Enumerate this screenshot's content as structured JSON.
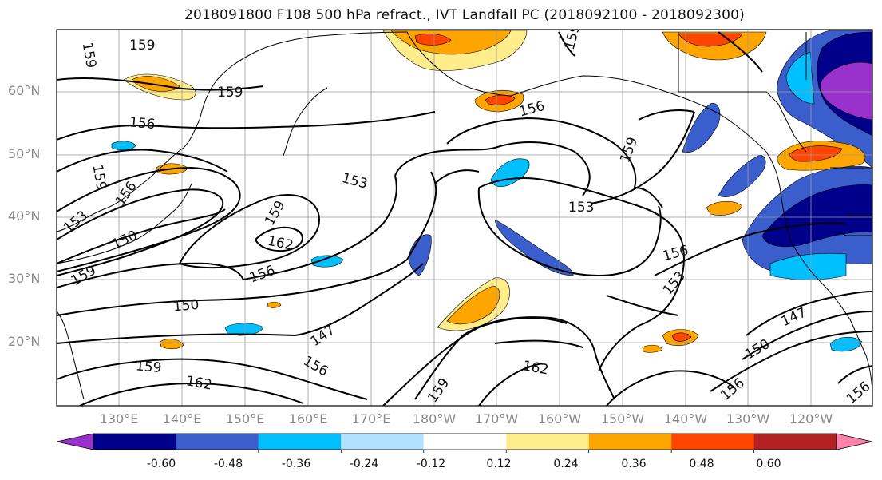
{
  "title": "2018091800 F108 500 hPa refract., IVT Landfall PC (2018092100 - 2018092300)",
  "lat_ticks": [
    "60°N",
    "50°N",
    "40°N",
    "30°N",
    "20°N"
  ],
  "lon_ticks": [
    "130°E",
    "140°E",
    "150°E",
    "160°E",
    "170°E",
    "180°W",
    "170°W",
    "160°W",
    "150°W",
    "140°W",
    "130°W",
    "120°W"
  ],
  "colorbar": {
    "colors": [
      "#9932CC",
      "#00008B",
      "#3A5FCD",
      "#00BFFF",
      "#B0E2FF",
      "#FFFFFF",
      "#FFEC8B",
      "#FFA500",
      "#FF4500",
      "#B22222",
      "#FF82AB"
    ],
    "labels": [
      "-0.60",
      "-0.48",
      "-0.36",
      "-0.24",
      "-0.12",
      "0.12",
      "0.24",
      "0.36",
      "0.48",
      "0.60"
    ]
  },
  "contour_labels": [
    {
      "text": "159"
    },
    {
      "text": "159"
    },
    {
      "text": "159"
    },
    {
      "text": "156"
    },
    {
      "text": "156"
    },
    {
      "text": "159"
    },
    {
      "text": "159"
    },
    {
      "text": "153"
    },
    {
      "text": "150"
    },
    {
      "text": "159"
    },
    {
      "text": "153"
    },
    {
      "text": "159"
    },
    {
      "text": "162"
    },
    {
      "text": "156"
    },
    {
      "text": "150"
    },
    {
      "text": "147"
    },
    {
      "text": "156"
    },
    {
      "text": "159"
    },
    {
      "text": "162"
    },
    {
      "text": "159"
    },
    {
      "text": "153"
    },
    {
      "text": "156"
    },
    {
      "text": "153"
    },
    {
      "text": "147"
    },
    {
      "text": "150"
    },
    {
      "text": "156"
    },
    {
      "text": "156"
    },
    {
      "text": "159"
    },
    {
      "text": "156"
    },
    {
      "text": "162"
    }
  ]
}
